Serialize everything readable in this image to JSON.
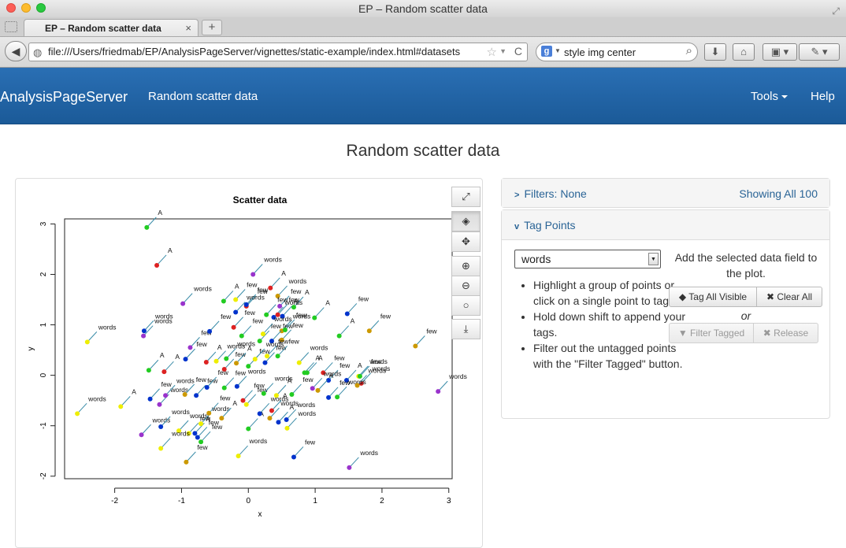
{
  "window": {
    "title": "EP – Random scatter data"
  },
  "tab": {
    "label": "EP – Random scatter data",
    "close": "×",
    "new": "+"
  },
  "nav": {
    "back": "◀",
    "url": "file:///Users/friedmab/EP/AnalysisPageServer/vignettes/static-example/index.html#datasets",
    "star": "☆",
    "reload": "C",
    "search_engine": "g",
    "search_query": "style img center"
  },
  "app": {
    "brand": "AnalysisPageServer",
    "page_nav_title": "Random scatter data",
    "tools": "Tools",
    "help": "Help",
    "page_title": "Random scatter data"
  },
  "plot_tools": {
    "expand": "⤢",
    "tag": "◈",
    "pan": "✥",
    "zoom_in": "⊕",
    "zoom_out": "⊖",
    "reset": "○",
    "download": "⤓"
  },
  "filters_panel": {
    "label": "Filters: None",
    "showing": "Showing All 100"
  },
  "tag_panel": {
    "label": "Tag Points",
    "selected_field": "words",
    "add_text": "Add the selected data field to the plot.",
    "instructions": [
      "Highlight a group of points or click on a single point to tag.",
      "Hold down shift to append your tags.",
      "Filter out the untagged points with the \"Filter Tagged\" button."
    ],
    "tag_all_visible": "Tag All Visible",
    "clear_all": "Clear All",
    "or": "or",
    "filter_tagged": "Filter Tagged",
    "release": "Release"
  },
  "chart_data": {
    "type": "scatter",
    "title": "Scatter data",
    "xlabel": "x",
    "ylabel": "y",
    "xlim": [
      -2.75,
      3.05
    ],
    "ylim": [
      -2.05,
      3.1
    ],
    "xticks": [
      "-2",
      "-1",
      "0",
      "1",
      "2",
      "3"
    ],
    "yticks": [
      "-2",
      "-1",
      "0",
      "1",
      "2",
      "3"
    ],
    "points": [
      {
        "x": -1.52,
        "y": 2.93,
        "label": "A",
        "color": "#22cc22"
      },
      {
        "x": -1.37,
        "y": 2.18,
        "label": "A",
        "color": "#dd2222"
      },
      {
        "x": 0.07,
        "y": 2.0,
        "label": "words",
        "color": "#9933cc"
      },
      {
        "x": -0.98,
        "y": 1.42,
        "label": "words",
        "color": "#9933cc"
      },
      {
        "x": 0.33,
        "y": 1.73,
        "label": "A",
        "color": "#dd2222"
      },
      {
        "x": 0.44,
        "y": 1.57,
        "label": "words",
        "color": "#cc9900"
      },
      {
        "x": -0.37,
        "y": 1.47,
        "label": "A",
        "color": "#22cc22"
      },
      {
        "x": -0.19,
        "y": 1.5,
        "label": "few",
        "color": "#eeee00"
      },
      {
        "x": -0.03,
        "y": 1.37,
        "label": "few",
        "color": "#dd2222"
      },
      {
        "x": 0.47,
        "y": 1.37,
        "label": "few",
        "color": "#9933cc"
      },
      {
        "x": 0.68,
        "y": 1.35,
        "label": "A",
        "color": "#22cc22"
      },
      {
        "x": -0.03,
        "y": 1.4,
        "label": "few",
        "color": "#0033cc"
      },
      {
        "x": -2.41,
        "y": 0.66,
        "label": "words",
        "color": "#eeee00"
      },
      {
        "x": -1.57,
        "y": 0.78,
        "label": "words",
        "color": "#9933cc"
      },
      {
        "x": -1.56,
        "y": 0.88,
        "label": "words",
        "color": "#0033cc"
      },
      {
        "x": -0.87,
        "y": 0.55,
        "label": "few",
        "color": "#9933cc"
      },
      {
        "x": -0.58,
        "y": 0.87,
        "label": "few",
        "color": "#0033cc"
      },
      {
        "x": -0.19,
        "y": 1.25,
        "label": "words",
        "color": "#0033cc"
      },
      {
        "x": -0.22,
        "y": 0.95,
        "label": "few",
        "color": "#dd2222"
      },
      {
        "x": 0.17,
        "y": 0.68,
        "label": "few",
        "color": "#22cc22"
      },
      {
        "x": 0.27,
        "y": 1.2,
        "label": "few",
        "color": "#22cc22"
      },
      {
        "x": 0.38,
        "y": 1.15,
        "label": "words",
        "color": "#0033cc"
      },
      {
        "x": 0.44,
        "y": 1.2,
        "label": "few",
        "color": "#dd2222"
      },
      {
        "x": 0.51,
        "y": 1.17,
        "label": "A",
        "color": "#0033cc"
      },
      {
        "x": 0.5,
        "y": 0.88,
        "label": "words",
        "color": "#cc9900"
      },
      {
        "x": 0.35,
        "y": 0.68,
        "label": "few",
        "color": "#0033cc"
      },
      {
        "x": 0.55,
        "y": 0.9,
        "label": "few",
        "color": "#22cc22"
      },
      {
        "x": 0.5,
        "y": 0.7,
        "label": "few",
        "color": "#cc9900"
      },
      {
        "x": 0.99,
        "y": 1.14,
        "label": "A",
        "color": "#22cc22"
      },
      {
        "x": 1.48,
        "y": 1.22,
        "label": "few",
        "color": "#0033cc"
      },
      {
        "x": 1.36,
        "y": 0.78,
        "label": "A",
        "color": "#22cc22"
      },
      {
        "x": 1.81,
        "y": 0.88,
        "label": "few",
        "color": "#cc9900"
      },
      {
        "x": 2.5,
        "y": 0.58,
        "label": "few",
        "color": "#cc9900"
      },
      {
        "x": -1.49,
        "y": 0.1,
        "label": "A",
        "color": "#22cc22"
      },
      {
        "x": -1.26,
        "y": 0.07,
        "label": "A",
        "color": "#dd2222"
      },
      {
        "x": -0.94,
        "y": 0.32,
        "label": "few",
        "color": "#0033cc"
      },
      {
        "x": -0.63,
        "y": 0.26,
        "label": "A",
        "color": "#dd2222"
      },
      {
        "x": -0.48,
        "y": 0.28,
        "label": "words",
        "color": "#eeee00"
      },
      {
        "x": -0.36,
        "y": 0.12,
        "label": "few",
        "color": "#dd2222"
      },
      {
        "x": -0.18,
        "y": 0.24,
        "label": "A",
        "color": "#cc9900"
      },
      {
        "x": -0.33,
        "y": 0.33,
        "label": "words",
        "color": "#22cc22"
      },
      {
        "x": 0.0,
        "y": 0.18,
        "label": "few",
        "color": "#22cc22"
      },
      {
        "x": 0.1,
        "y": 0.32,
        "label": "words",
        "color": "#eeee00"
      },
      {
        "x": 0.25,
        "y": 0.25,
        "label": "few",
        "color": "#0033cc"
      },
      {
        "x": 0.28,
        "y": 0.38,
        "label": "few",
        "color": "#eeee00"
      },
      {
        "x": 0.44,
        "y": 0.38,
        "label": "few",
        "color": "#22cc22"
      },
      {
        "x": 0.76,
        "y": 0.25,
        "label": "words",
        "color": "#eeee00"
      },
      {
        "x": 0.84,
        "y": 0.05,
        "label": "A",
        "color": "#22cc22"
      },
      {
        "x": 0.88,
        "y": 0.05,
        "label": "A",
        "color": "#22cc22"
      },
      {
        "x": 1.12,
        "y": 0.05,
        "label": "few",
        "color": "#dd2222"
      },
      {
        "x": 1.2,
        "y": -0.1,
        "label": "few",
        "color": "#0033cc"
      },
      {
        "x": 1.47,
        "y": -0.1,
        "label": "A",
        "color": "#0033cc"
      },
      {
        "x": 1.65,
        "y": -0.02,
        "label": "words",
        "color": "#eeee00"
      },
      {
        "x": 1.67,
        "y": -0.02,
        "label": "few",
        "color": "#22cc22"
      },
      {
        "x": 1.69,
        "y": -0.16,
        "label": "words",
        "color": "#dd2222"
      },
      {
        "x": 2.84,
        "y": -0.32,
        "label": "words",
        "color": "#9933cc"
      },
      {
        "x": -2.56,
        "y": -0.76,
        "label": "words",
        "color": "#eeee00"
      },
      {
        "x": -1.91,
        "y": -0.62,
        "label": "A",
        "color": "#eeee00"
      },
      {
        "x": -1.47,
        "y": -0.47,
        "label": "few",
        "color": "#0033cc"
      },
      {
        "x": -1.33,
        "y": -0.58,
        "label": "words",
        "color": "#9933cc"
      },
      {
        "x": -1.24,
        "y": -0.4,
        "label": "words",
        "color": "#9933cc"
      },
      {
        "x": -0.95,
        "y": -0.38,
        "label": "few",
        "color": "#cc9900"
      },
      {
        "x": -0.78,
        "y": -0.4,
        "label": "few",
        "color": "#0033cc"
      },
      {
        "x": -0.62,
        "y": -0.24,
        "label": "few",
        "color": "#0033cc"
      },
      {
        "x": -0.36,
        "y": -0.25,
        "label": "few",
        "color": "#22cc22"
      },
      {
        "x": -0.17,
        "y": -0.22,
        "label": "words",
        "color": "#0033cc"
      },
      {
        "x": -0.08,
        "y": -0.5,
        "label": "few",
        "color": "#dd2222"
      },
      {
        "x": -0.03,
        "y": -0.58,
        "label": "few",
        "color": "#eeee00"
      },
      {
        "x": 0.23,
        "y": -0.36,
        "label": "words",
        "color": "#22cc22"
      },
      {
        "x": 0.42,
        "y": -0.4,
        "label": "A",
        "color": "#eeee00"
      },
      {
        "x": 0.65,
        "y": -0.38,
        "label": "few",
        "color": "#22cc22"
      },
      {
        "x": 0.96,
        "y": -0.26,
        "label": "words",
        "color": "#9933cc"
      },
      {
        "x": 1.04,
        "y": -0.3,
        "label": "A",
        "color": "#cc9900"
      },
      {
        "x": 1.2,
        "y": -0.44,
        "label": "few",
        "color": "#0033cc"
      },
      {
        "x": 1.33,
        "y": -0.43,
        "label": "words",
        "color": "#22cc22"
      },
      {
        "x": 1.63,
        "y": -0.2,
        "label": "words",
        "color": "#cc9900"
      },
      {
        "x": -1.6,
        "y": -1.18,
        "label": "words",
        "color": "#9933cc"
      },
      {
        "x": -1.31,
        "y": -1.02,
        "label": "words",
        "color": "#0033cc"
      },
      {
        "x": -1.04,
        "y": -1.1,
        "label": "words",
        "color": "#eeee00"
      },
      {
        "x": -0.89,
        "y": -1.15,
        "label": "few",
        "color": "#eeee00"
      },
      {
        "x": -0.8,
        "y": -1.15,
        "label": "A",
        "color": "#0033cc"
      },
      {
        "x": -0.71,
        "y": -0.96,
        "label": "words",
        "color": "#eeee00"
      },
      {
        "x": -0.59,
        "y": -0.75,
        "label": "few",
        "color": "#cc9900"
      },
      {
        "x": -0.4,
        "y": -0.85,
        "label": "A",
        "color": "#cc9900"
      },
      {
        "x": 0.0,
        "y": -1.06,
        "label": "A",
        "color": "#22cc22"
      },
      {
        "x": 0.17,
        "y": -0.76,
        "label": "words",
        "color": "#0033cc"
      },
      {
        "x": 0.35,
        "y": -0.7,
        "label": "A",
        "color": "#dd2222"
      },
      {
        "x": 0.32,
        "y": -0.85,
        "label": "words",
        "color": "#cc9900"
      },
      {
        "x": 0.45,
        "y": -0.93,
        "label": "A",
        "color": "#0033cc"
      },
      {
        "x": 0.57,
        "y": -0.88,
        "label": "words",
        "color": "#0033cc"
      },
      {
        "x": 0.58,
        "y": -1.05,
        "label": "words",
        "color": "#eeee00"
      },
      {
        "x": -1.31,
        "y": -1.45,
        "label": "words",
        "color": "#eeee00"
      },
      {
        "x": -0.93,
        "y": -1.72,
        "label": "few",
        "color": "#cc9900"
      },
      {
        "x": -0.71,
        "y": -1.32,
        "label": "few",
        "color": "#22cc22"
      },
      {
        "x": -0.76,
        "y": -1.23,
        "label": "few",
        "color": "#0033cc"
      },
      {
        "x": -0.15,
        "y": -1.6,
        "label": "words",
        "color": "#eeee00"
      },
      {
        "x": 0.68,
        "y": -1.62,
        "label": "few",
        "color": "#0033cc"
      },
      {
        "x": 1.51,
        "y": -1.83,
        "label": "words",
        "color": "#9933cc"
      },
      {
        "x": -0.1,
        "y": 0.78,
        "label": "few",
        "color": "#22cc22"
      },
      {
        "x": 0.22,
        "y": 0.82,
        "label": "words",
        "color": "#eeee00"
      }
    ]
  }
}
